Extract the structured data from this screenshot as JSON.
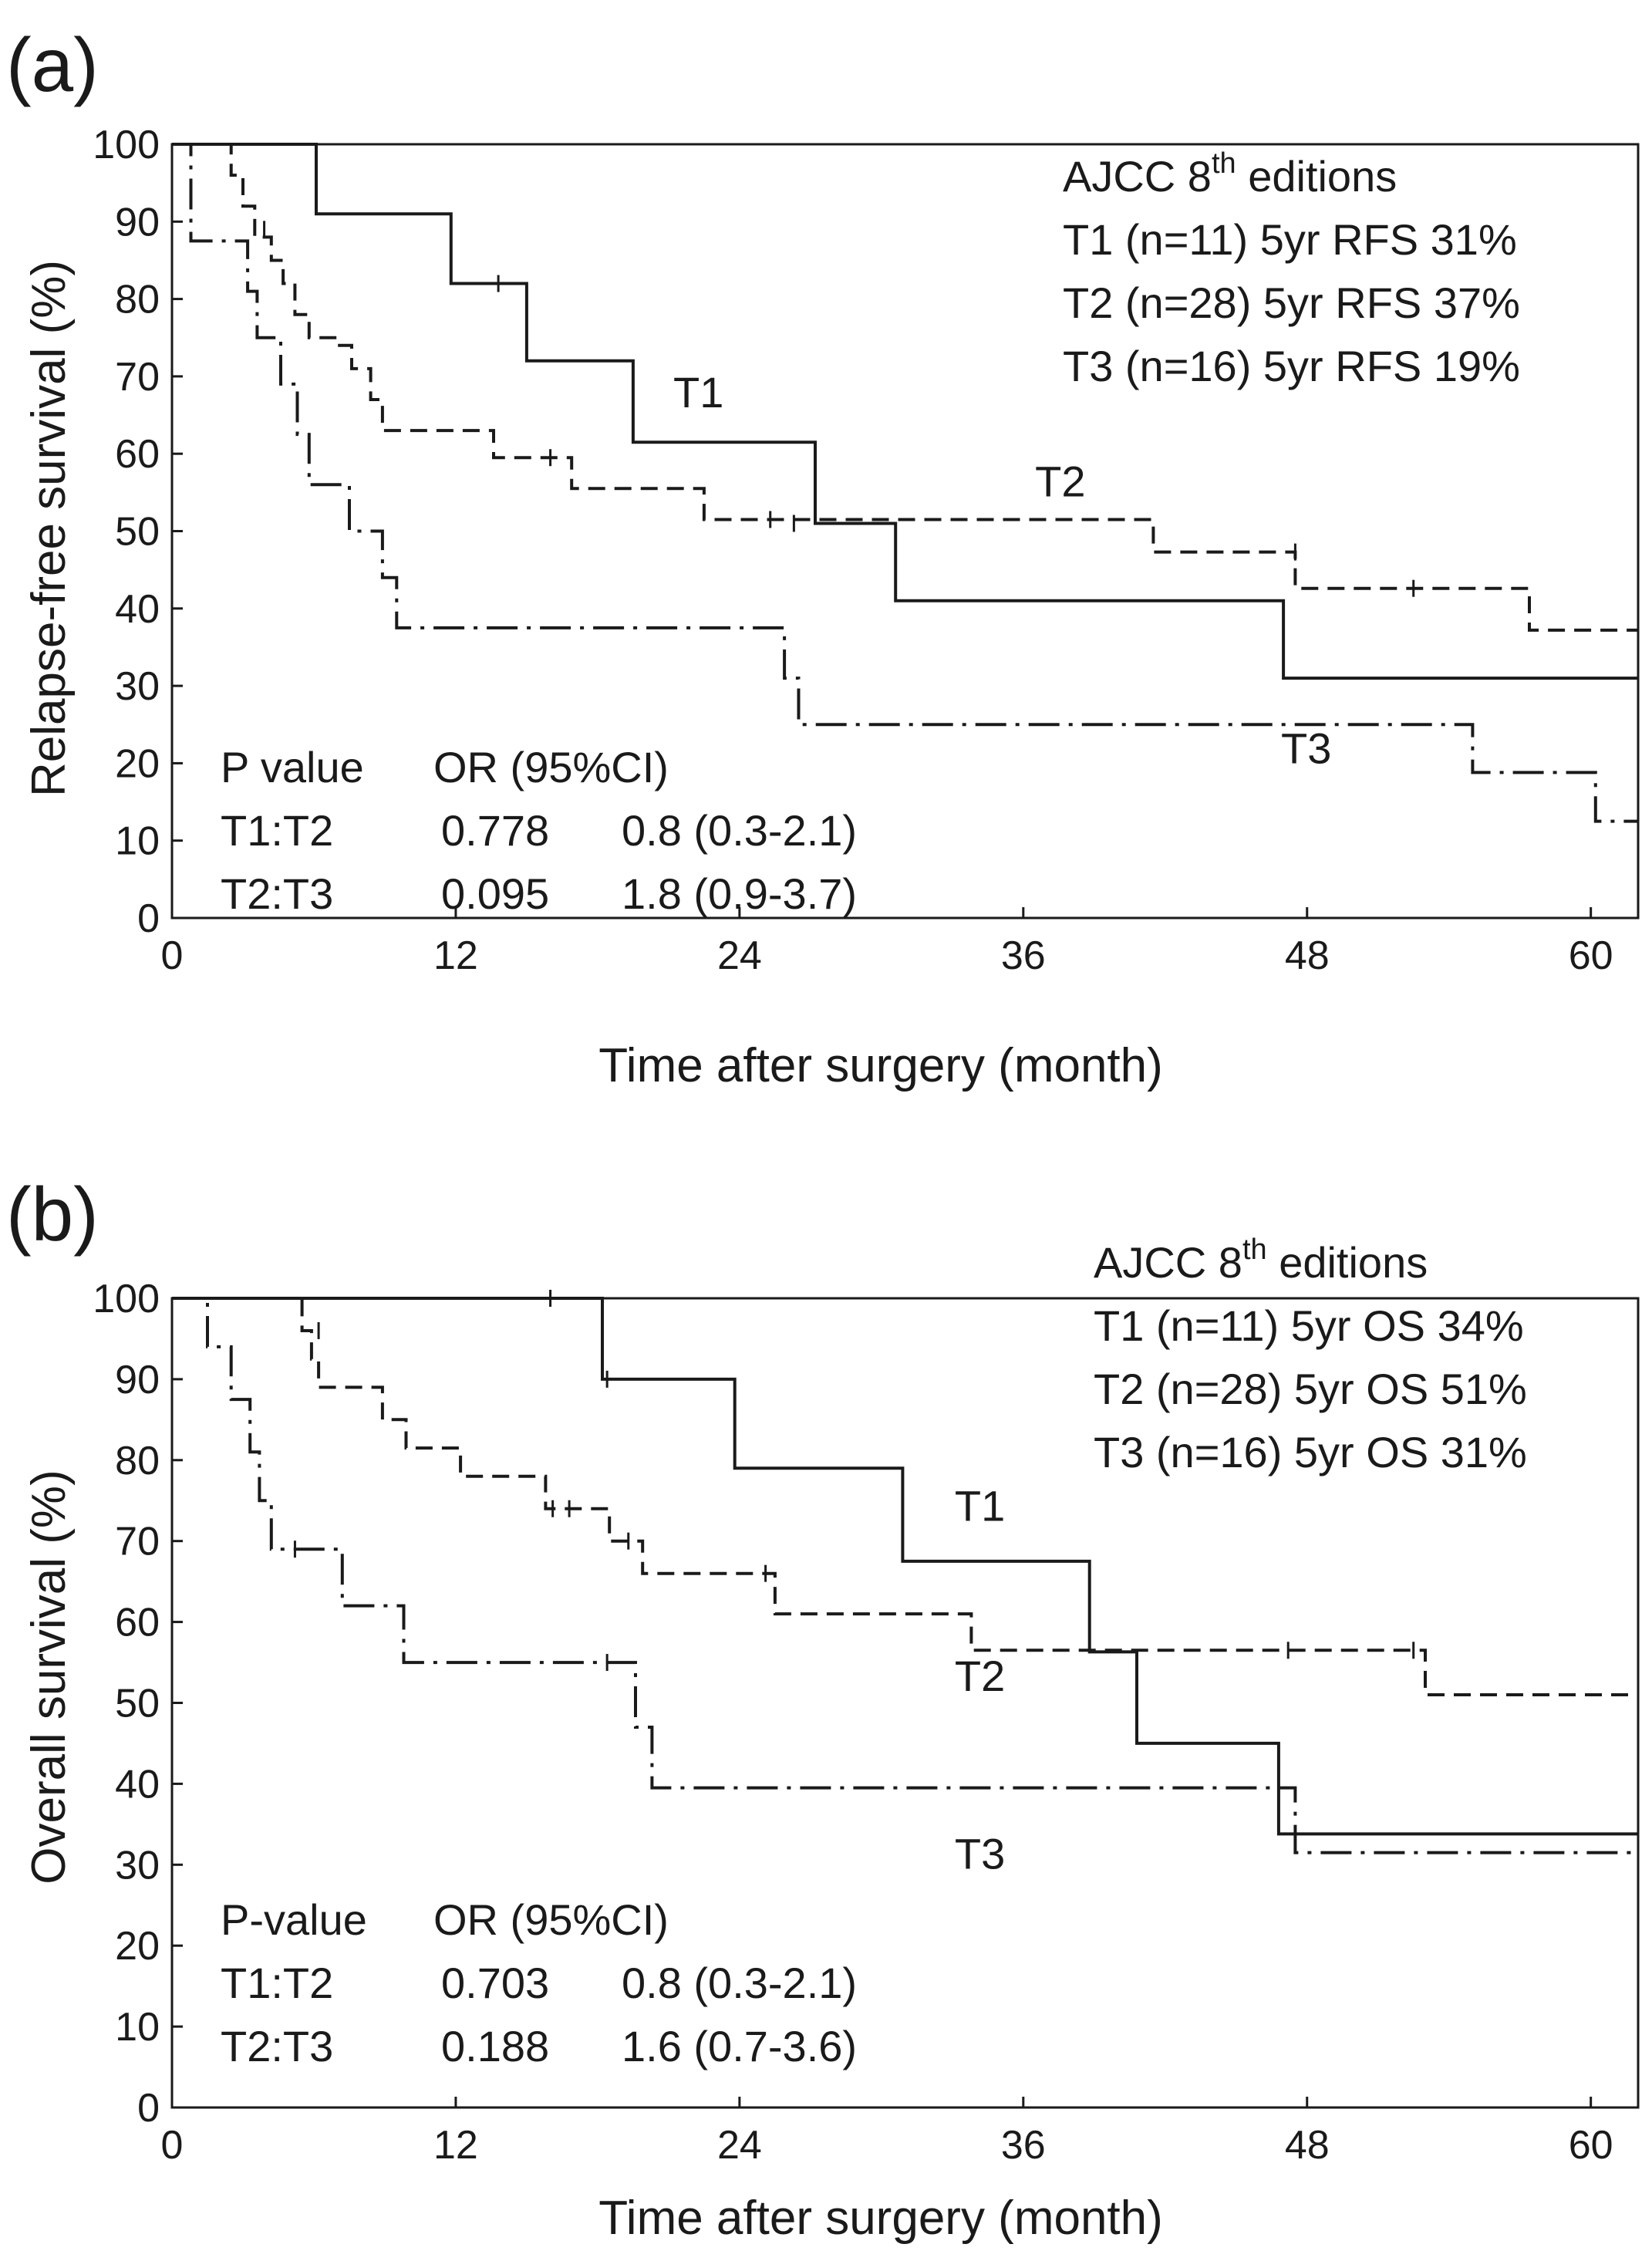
{
  "chart_data": [
    {
      "type": "line",
      "subtype": "kaplan-meier",
      "panel_label": "(a)",
      "xlabel": "Time after surgery (month)",
      "ylabel": "Relapse-free survival (%)",
      "xlim": [
        0,
        62
      ],
      "ylim": [
        0,
        100
      ],
      "xticks": [
        0,
        12,
        24,
        36,
        48,
        60
      ],
      "yticks": [
        0,
        10,
        20,
        30,
        40,
        50,
        60,
        70,
        80,
        90,
        100
      ],
      "legend": {
        "title_main": "AJCC 8",
        "title_sup": "th",
        "title_rest": " editions",
        "entries": [
          "T1 (n=11) 5yr RFS 31%",
          "T2 (n=28) 5yr RFS 37%",
          "T3 (n=16) 5yr RFS 19%"
        ]
      },
      "stats": {
        "header": [
          "P value",
          "OR (95%CI)"
        ],
        "rows": [
          [
            "T1:T2",
            "0.778",
            "0.8 (0.3-2.1)"
          ],
          [
            "T2:T3",
            "0.095",
            "1.8 (0.9-3.7)"
          ]
        ]
      },
      "series": [
        {
          "name": "T1",
          "style": "solid",
          "label_pos": [
            21.2,
            66
          ],
          "x": [
            0,
            6.1,
            11.8,
            15,
            19.5,
            27.2,
            30.6,
            47,
            62
          ],
          "y": [
            100,
            91,
            82,
            72,
            61.5,
            51,
            41,
            31,
            31
          ],
          "censored": [
            [
              13.8,
              82
            ],
            [
              26.3,
              51
            ]
          ]
        },
        {
          "name": "T2",
          "style": "dashed",
          "label_pos": [
            36.5,
            54.5
          ],
          "x": [
            0,
            2.5,
            3,
            3.5,
            4.2,
            4.7,
            5.2,
            5.8,
            7,
            7.6,
            8.4,
            8.9,
            9.4,
            13.6,
            16.9,
            22.5,
            24.7,
            41.5,
            47.5,
            57.4,
            62
          ],
          "y": [
            100,
            96,
            92,
            88,
            85,
            82,
            78,
            75,
            74,
            71,
            67,
            63,
            63,
            59.5,
            55.5,
            51.5,
            51.5,
            47.3,
            42.6,
            37.2,
            37.2
          ],
          "censored": [
            [
              3.9,
              89
            ],
            [
              16,
              59.5
            ],
            [
              25.3,
              51.5
            ],
            [
              47.5,
              47.3
            ],
            [
              52.5,
              42.6
            ]
          ]
        },
        {
          "name": "T3",
          "style": "dashdot",
          "label_pos": [
            46.9,
            20
          ],
          "x": [
            0,
            0.8,
            2.8,
            3.2,
            3.6,
            4.6,
            5.3,
            5.8,
            7.5,
            8.9,
            9.5,
            10.2,
            25.9,
            26.5,
            27,
            55,
            60.2,
            62
          ],
          "y": [
            100,
            87.5,
            87.5,
            81,
            75,
            69,
            62.5,
            56,
            50,
            44,
            37.5,
            37.5,
            31,
            25,
            25,
            18.8,
            12.5,
            12.5
          ],
          "censored": []
        }
      ]
    },
    {
      "type": "line",
      "subtype": "kaplan-meier",
      "panel_label": "(b)",
      "xlabel": "Time after surgery (month)",
      "ylabel": "Overall survival (%)",
      "xlim": [
        0,
        62
      ],
      "ylim": [
        0,
        100
      ],
      "xticks": [
        0,
        12,
        24,
        36,
        48,
        60
      ],
      "yticks": [
        0,
        10,
        20,
        30,
        40,
        50,
        60,
        70,
        80,
        90,
        100
      ],
      "legend": {
        "title_main": "AJCC 8",
        "title_sup": "th",
        "title_rest": " editions",
        "entries": [
          "T1 (n=11) 5yr OS 34%",
          "T2 (n=28) 5yr OS 51%",
          "T3 (n=16) 5yr OS 31%"
        ]
      },
      "stats": {
        "header": [
          "P-value",
          "OR (95%CI)"
        ],
        "rows": [
          [
            "T1:T2",
            "0.703",
            "0.8 (0.3-2.1)"
          ],
          [
            "T2:T3",
            "0.188",
            "1.6 (0.7-3.6)"
          ]
        ]
      },
      "series": [
        {
          "name": "T1",
          "style": "solid",
          "label_pos": [
            33.1,
            72.5
          ],
          "x": [
            0,
            18.2,
            23.8,
            30.9,
            38.8,
            40.8,
            46.8,
            62
          ],
          "y": [
            100,
            90,
            79,
            67.5,
            56.3,
            45,
            33.8,
            33.8
          ],
          "censored": [
            [
              16,
              100
            ],
            [
              18.4,
              90
            ]
          ]
        },
        {
          "name": "T2",
          "style": "dashed",
          "label_pos": [
            33.1,
            51.5
          ],
          "x": [
            0,
            5.5,
            5.9,
            6.2,
            8.9,
            9.9,
            10.4,
            12.2,
            15.8,
            18.5,
            19.9,
            25.5,
            33.8,
            53,
            62
          ],
          "y": [
            100,
            96,
            92.5,
            89,
            85,
            81.5,
            81.5,
            78,
            74,
            70,
            66,
            61,
            56.5,
            51,
            51
          ],
          "censored": [
            [
              6.2,
              96
            ],
            [
              16.1,
              74
            ],
            [
              16.8,
              74
            ],
            [
              19.3,
              70
            ],
            [
              25.1,
              66
            ],
            [
              47.2,
              56.5
            ],
            [
              52.5,
              56.5
            ]
          ]
        },
        {
          "name": "T3",
          "style": "dashdot",
          "label_pos": [
            33.1,
            29.5
          ],
          "x": [
            0,
            1.5,
            2.5,
            3.3,
            3.7,
            4.2,
            7.2,
            9.8,
            19.6,
            20.3,
            47.5,
            62
          ],
          "y": [
            100,
            94,
            87.5,
            81,
            75,
            69,
            62,
            55,
            47,
            39.5,
            31.5,
            31.5
          ],
          "censored": [
            [
              5.2,
              69
            ],
            [
              18.4,
              55
            ]
          ]
        }
      ]
    }
  ]
}
